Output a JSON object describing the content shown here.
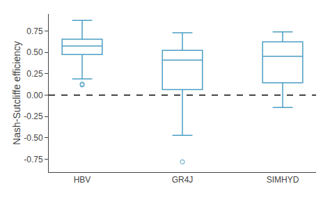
{
  "chart_data": {
    "type": "box",
    "categories": [
      "HBV",
      "GR4J",
      "SIMHYD"
    ],
    "boxes": [
      {
        "whislo": 0.19,
        "q1": 0.475,
        "median": 0.575,
        "q3": 0.655,
        "whishi": 0.875,
        "fliers": [
          0.12,
          0.13
        ]
      },
      {
        "whislo": -0.47,
        "q1": 0.065,
        "median": 0.41,
        "q3": 0.525,
        "whishi": 0.73,
        "fliers": [
          -0.78
        ]
      },
      {
        "whislo": -0.145,
        "q1": 0.145,
        "median": 0.455,
        "q3": 0.625,
        "whishi": 0.74,
        "fliers": []
      }
    ],
    "ylabel": "Nash-Sutcliffe efficiency",
    "ylim": [
      -0.9,
      0.95
    ],
    "yticks": [
      {
        "value": -0.75,
        "label": "-0.75"
      },
      {
        "value": -0.5,
        "label": "-0.50"
      },
      {
        "value": -0.25,
        "label": "-0.25"
      },
      {
        "value": 0,
        "label": "0.00"
      },
      {
        "value": 0.25,
        "label": "0.25"
      },
      {
        "value": 0.5,
        "label": "0.50"
      },
      {
        "value": 0.75,
        "label": "0.75"
      }
    ],
    "color": "#4c9ec4",
    "marker": "circle-open",
    "reference_line": {
      "y": 0.0,
      "line_style": "dash"
    },
    "grid": false
  }
}
